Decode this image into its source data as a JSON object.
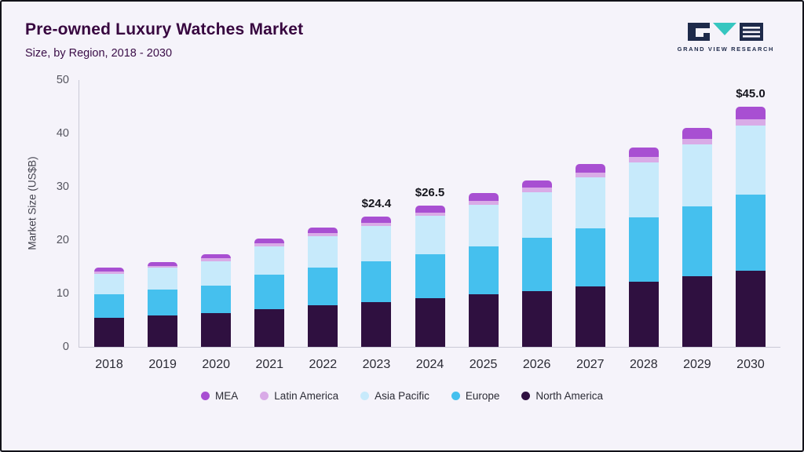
{
  "header": {
    "title": "Pre-owned Luxury Watches Market",
    "subtitle": "Size, by Region, 2018 - 2030",
    "logo_text": "GRAND VIEW RESEARCH"
  },
  "chart_data": {
    "type": "bar",
    "stacked": true,
    "title": "Pre-owned Luxury Watches Market Size, by Region, 2018 - 2030",
    "xlabel": "",
    "ylabel": "Market Size (US$B)",
    "ylim": [
      0,
      50
    ],
    "yticks": [
      0,
      10,
      20,
      30,
      40,
      50
    ],
    "grid": false,
    "legend_position": "bottom",
    "categories": [
      "2018",
      "2019",
      "2020",
      "2021",
      "2022",
      "2023",
      "2024",
      "2025",
      "2026",
      "2027",
      "2028",
      "2029",
      "2030"
    ],
    "series_order_note": "bottom to top of stack",
    "series": [
      {
        "name": "North America",
        "values": [
          5.5,
          5.9,
          6.3,
          7.1,
          7.8,
          8.4,
          9.1,
          9.8,
          10.5,
          11.3,
          12.2,
          13.2,
          14.3
        ]
      },
      {
        "name": "Europe",
        "values": [
          4.4,
          4.8,
          5.2,
          6.4,
          7.0,
          7.6,
          8.2,
          9.0,
          9.9,
          10.9,
          12.0,
          13.1,
          14.3
        ]
      },
      {
        "name": "Asia Pacific",
        "values": [
          3.8,
          4.1,
          4.6,
          5.4,
          6.0,
          6.6,
          7.2,
          7.8,
          8.6,
          9.5,
          10.4,
          11.6,
          12.9
        ]
      },
      {
        "name": "Latin America",
        "values": [
          0.4,
          0.4,
          0.5,
          0.5,
          0.5,
          0.6,
          0.7,
          0.8,
          0.8,
          0.9,
          1.0,
          1.1,
          1.2
        ]
      },
      {
        "name": "MEA",
        "values": [
          0.7,
          0.7,
          0.8,
          0.9,
          1.0,
          1.2,
          1.3,
          1.4,
          1.4,
          1.6,
          1.7,
          2.1,
          2.3
        ]
      }
    ],
    "totals": [
      14.8,
      15.9,
      17.4,
      20.3,
      22.3,
      24.4,
      26.5,
      28.8,
      31.2,
      34.2,
      37.3,
      41.1,
      45.0
    ],
    "annotations": [
      {
        "category": "2023",
        "label": "$24.4"
      },
      {
        "category": "2024",
        "label": "$26.5"
      },
      {
        "category": "2030",
        "label": "$45.0"
      }
    ],
    "colors": {
      "North America": "#2f1040",
      "Europe": "#45c0ee",
      "Asia Pacific": "#c7eafb",
      "Latin America": "#d9abe7",
      "MEA": "#a84fd2"
    },
    "legend": [
      "MEA",
      "Latin America",
      "Asia Pacific",
      "Europe",
      "North America"
    ]
  }
}
